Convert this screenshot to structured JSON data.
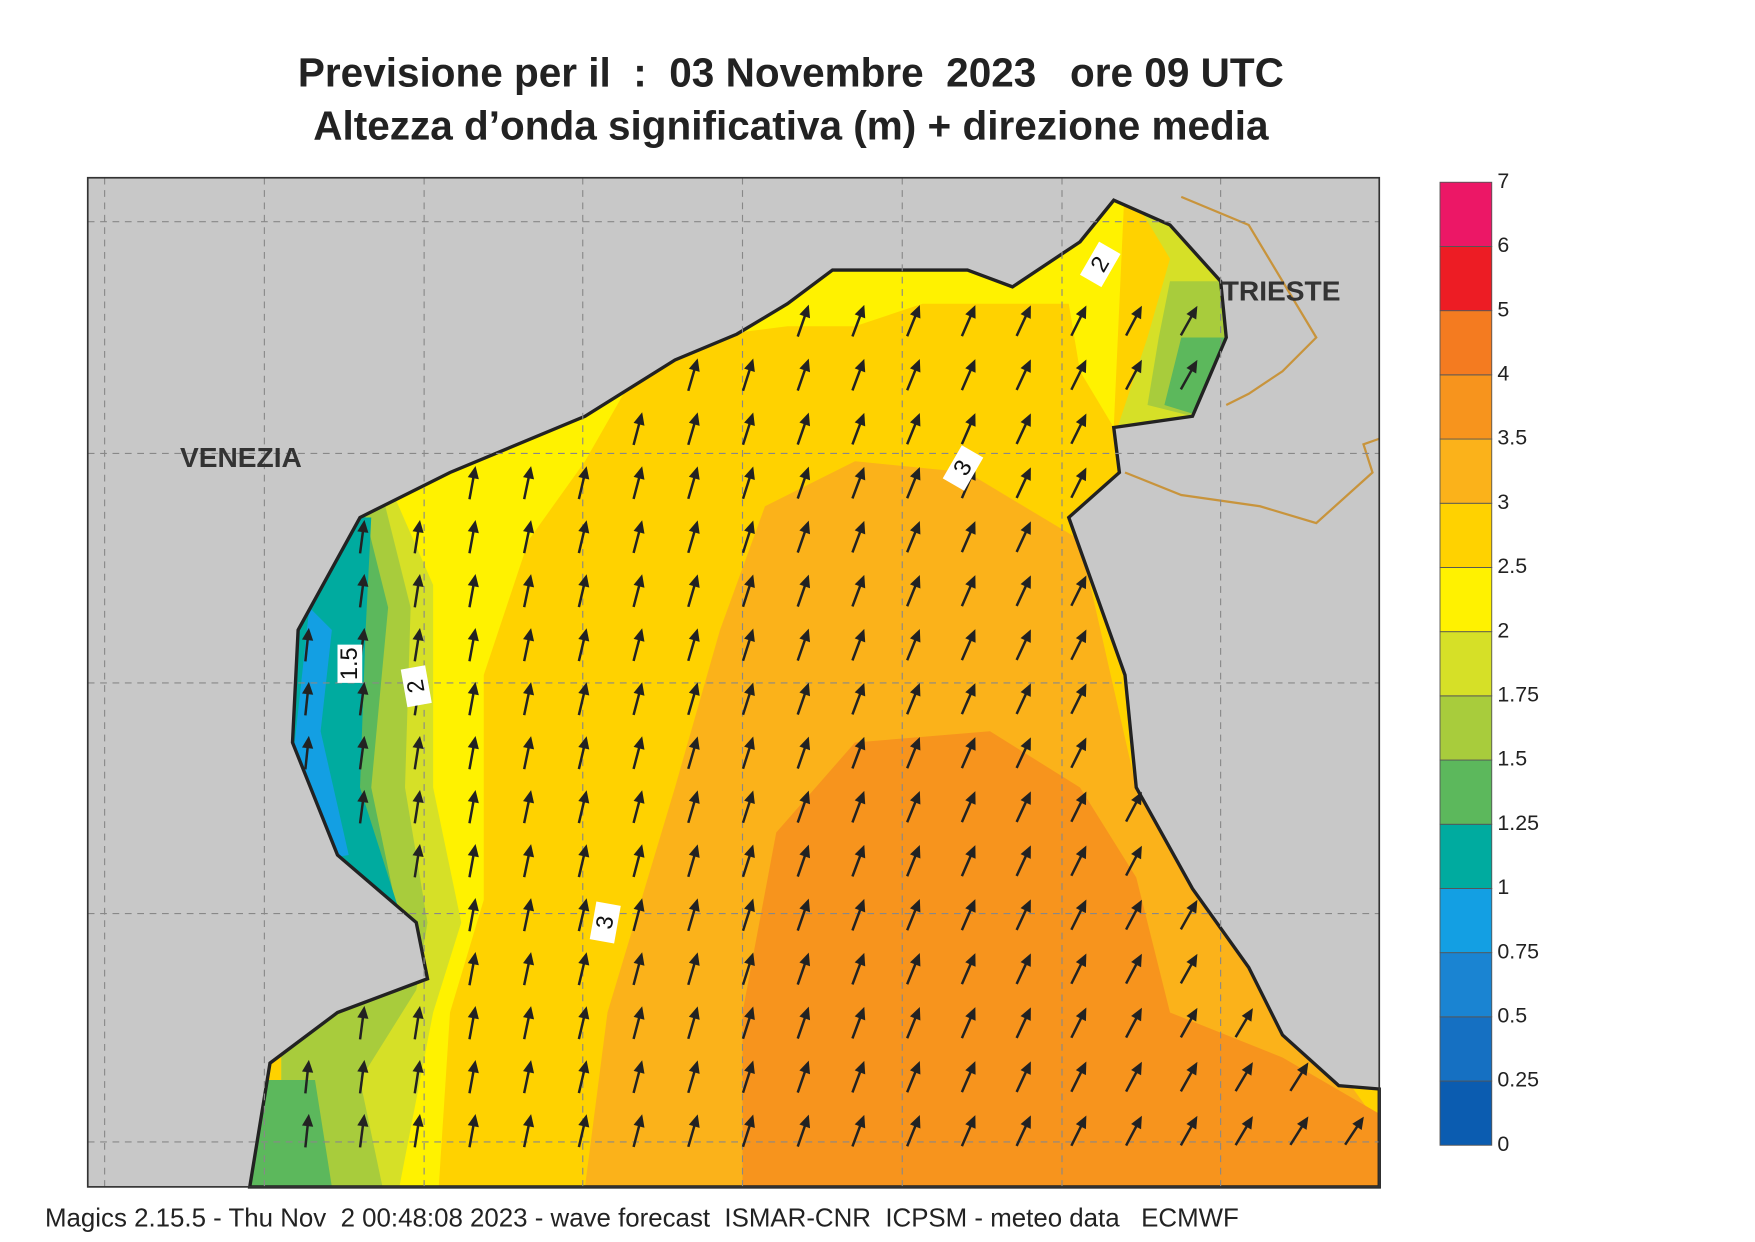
{
  "title": [
    "Previsione per il  :  03 Novembre  2023   ore 09 UTC",
    "Altezza d’onda significativa (m) + direzione media"
  ],
  "places": [
    "VENEZIA",
    "TRIESTE"
  ],
  "contour_labels": [
    "1.5",
    "2",
    "3",
    "3",
    "2"
  ],
  "legend": {
    "levels": [
      0,
      0.25,
      0.5,
      0.75,
      1,
      1.25,
      1.5,
      1.75,
      2,
      2.5,
      3,
      3.5,
      4,
      5,
      6,
      7
    ],
    "colors": [
      "#0b5cb0",
      "#1570c2",
      "#1a84d2",
      "#139fe3",
      "#00ab9f",
      "#5cb85c",
      "#a8cc3c",
      "#d6e027",
      "#fff200",
      "#ffd200",
      "#fbb21a",
      "#f7941d",
      "#f47b20",
      "#ed1c24",
      "#ec1766"
    ]
  },
  "footer": "Magics 2.15.5 - Thu Nov  2 00:48:08 2023 - wave forecast  ISMAR-CNR  ICPSM - meteo data   ECMWF"
}
